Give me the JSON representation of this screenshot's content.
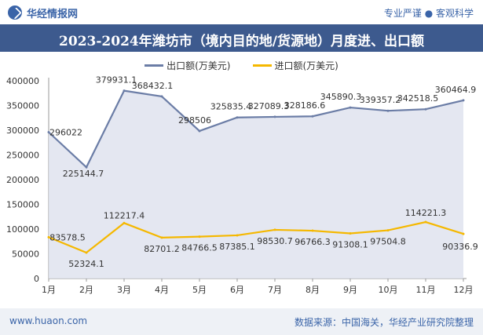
{
  "header": {
    "logo_text": "华经情报网",
    "tagline": "专业严谨 ● 客观科学"
  },
  "title": "2023-2024年潍坊市（境内目的地/货源地）月度进、出口额",
  "footer": {
    "website": "www.huaon.com",
    "source": "数据来源：中国海关，华经产业研究院整理"
  },
  "colors": {
    "title_bg": "#3d5a8e",
    "export_line": "#6b7da6",
    "export_fill": "#dfe3ee",
    "import_line": "#f5b800"
  },
  "chart_data": {
    "type": "area",
    "categories": [
      "1月",
      "2月",
      "3月",
      "4月",
      "5月",
      "6月",
      "7月",
      "8月",
      "9月",
      "10月",
      "11月",
      "12月"
    ],
    "series": [
      {
        "name": "出口额(万美元)",
        "values": [
          296022,
          225144.7,
          379931.1,
          368432.1,
          298506,
          325835.4,
          327089.3,
          328186.6,
          345890.3,
          339357.2,
          342518.5,
          360464.9
        ],
        "labels": [
          "296022",
          "225144.7",
          "379931.1",
          "368432.1",
          "298506",
          "325835.4",
          "327089.3",
          "328186.6",
          "345890.3",
          "339357.2",
          "342518.5",
          "360464.9"
        ]
      },
      {
        "name": "进口额(万美元)",
        "values": [
          83578.5,
          52324.1,
          112217.4,
          82701.2,
          84766.5,
          87385.1,
          98530.7,
          96766.3,
          91308.1,
          97504.8,
          114221.3,
          90336.9
        ],
        "labels": [
          "83578.5",
          "52324.1",
          "112217.4",
          "82701.2",
          "84766.5",
          "87385.1",
          "98530.7",
          "96766.3",
          "91308.1",
          "97504.8",
          "114221.3",
          "90336.9"
        ]
      }
    ],
    "y_ticks": [
      "0",
      "50000",
      "100000",
      "150000",
      "200000",
      "250000",
      "300000",
      "350000",
      "400000"
    ],
    "ylim": [
      0,
      400000
    ],
    "grid": false,
    "legend_position": "top-center"
  }
}
